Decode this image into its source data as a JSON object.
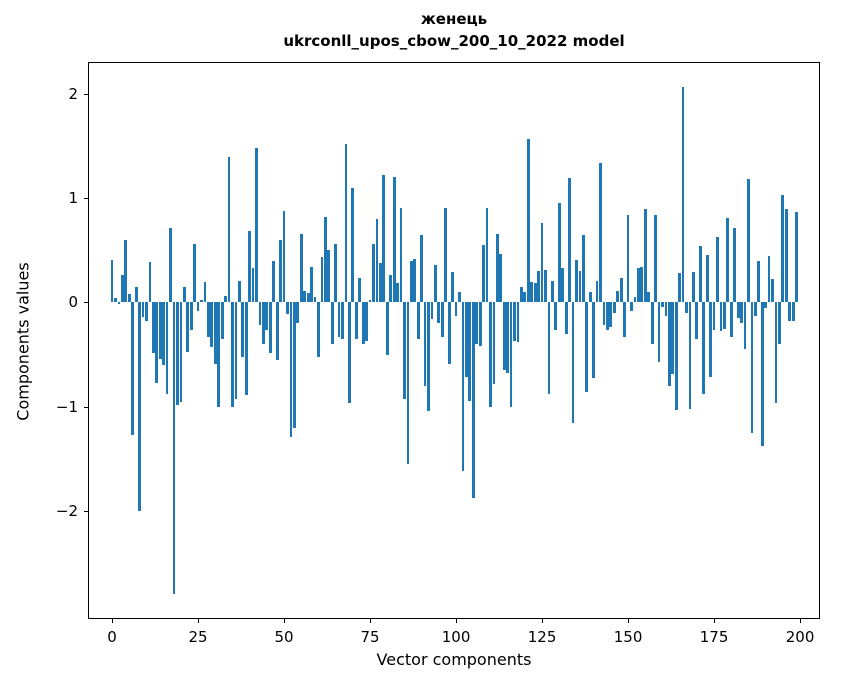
{
  "title": {
    "line1": "женець",
    "line2": "ukrconll_upos_cbow_200_10_2022 model"
  },
  "axes": {
    "xlabel": "Vector components",
    "ylabel": "Components values",
    "x_ticks": [
      0,
      25,
      50,
      75,
      100,
      125,
      150,
      175,
      200
    ],
    "y_ticks": [
      2,
      1,
      0,
      -1,
      -2
    ],
    "xlim": [
      -7.0,
      205.8
    ],
    "ylim": [
      -3.04,
      2.31
    ],
    "grid": false
  },
  "chart_data": {
    "type": "bar",
    "title": "женець\nukrconll_upos_cbow_200_10_2022 model",
    "xlabel": "Vector components",
    "ylabel": "Components values",
    "legend": "none",
    "bar_color": "#1f77b4",
    "bar_width_units": 0.8,
    "n_components": 200,
    "x": "indices 0..199",
    "values": [
      0.41,
      0.04,
      -0.01,
      0.26,
      0.6,
      0.08,
      -1.27,
      0.15,
      -2.0,
      -0.14,
      -0.18,
      0.39,
      -0.49,
      -0.77,
      -0.54,
      -0.6,
      -0.88,
      0.72,
      -2.8,
      -0.98,
      -0.96,
      0.15,
      -0.48,
      -0.26,
      0.56,
      -0.08,
      0.02,
      0.2,
      -0.33,
      -0.43,
      -0.59,
      -1.0,
      -0.35,
      0.06,
      1.4,
      -1.0,
      -0.93,
      0.21,
      -0.52,
      -0.89,
      0.69,
      0.33,
      1.48,
      -0.22,
      -0.4,
      -0.26,
      -0.49,
      0.4,
      -0.55,
      0.6,
      0.88,
      -0.11,
      -1.29,
      -1.21,
      -0.2,
      0.66,
      0.11,
      0.09,
      0.34,
      0.05,
      -0.52,
      0.44,
      0.82,
      0.5,
      -0.4,
      0.56,
      -0.33,
      -0.35,
      1.52,
      -0.97,
      1.1,
      -0.35,
      0.24,
      -0.4,
      -0.37,
      0.02,
      0.56,
      0.8,
      0.38,
      1.22,
      -0.5,
      0.26,
      1.21,
      0.19,
      0.91,
      -0.93,
      -1.55,
      0.4,
      0.42,
      -0.35,
      0.65,
      -0.8,
      -1.04,
      -0.16,
      0.36,
      -0.2,
      -0.33,
      0.91,
      -0.59,
      0.29,
      -0.13,
      0.1,
      -1.62,
      -0.72,
      -0.95,
      -1.88,
      -0.4,
      -0.42,
      0.55,
      0.91,
      -1.0,
      -0.78,
      0.66,
      0.47,
      -0.65,
      -0.68,
      -1.0,
      -0.37,
      -0.38,
      0.15,
      0.1,
      1.57,
      0.2,
      0.19,
      0.3,
      0.76,
      0.31,
      -0.88,
      0.21,
      -0.26,
      0.96,
      0.33,
      -0.3,
      1.2,
      -1.16,
      0.41,
      0.3,
      0.65,
      -0.86,
      0.1,
      -0.73,
      0.21,
      1.34,
      -0.22,
      -0.26,
      -0.24,
      -0.1,
      0.11,
      0.24,
      -0.33,
      0.84,
      -0.08,
      0.05,
      0.33,
      0.34,
      0.9,
      0.1,
      -0.4,
      0.84,
      -0.57,
      -0.04,
      -0.13,
      -0.8,
      -0.69,
      -1.03,
      0.28,
      2.07,
      -0.1,
      -1.02,
      0.29,
      -0.35,
      0.54,
      -0.88,
      0.46,
      -0.72,
      -0.26,
      0.63,
      -0.27,
      -0.25,
      0.81,
      -0.33,
      0.72,
      -0.15,
      -0.2,
      -0.45,
      1.19,
      -1.25,
      -0.13,
      0.4,
      -1.38,
      -0.05,
      0.45,
      0.23,
      -0.97,
      -0.4,
      1.03,
      0.9,
      -0.18,
      -0.18,
      0.87
    ]
  }
}
